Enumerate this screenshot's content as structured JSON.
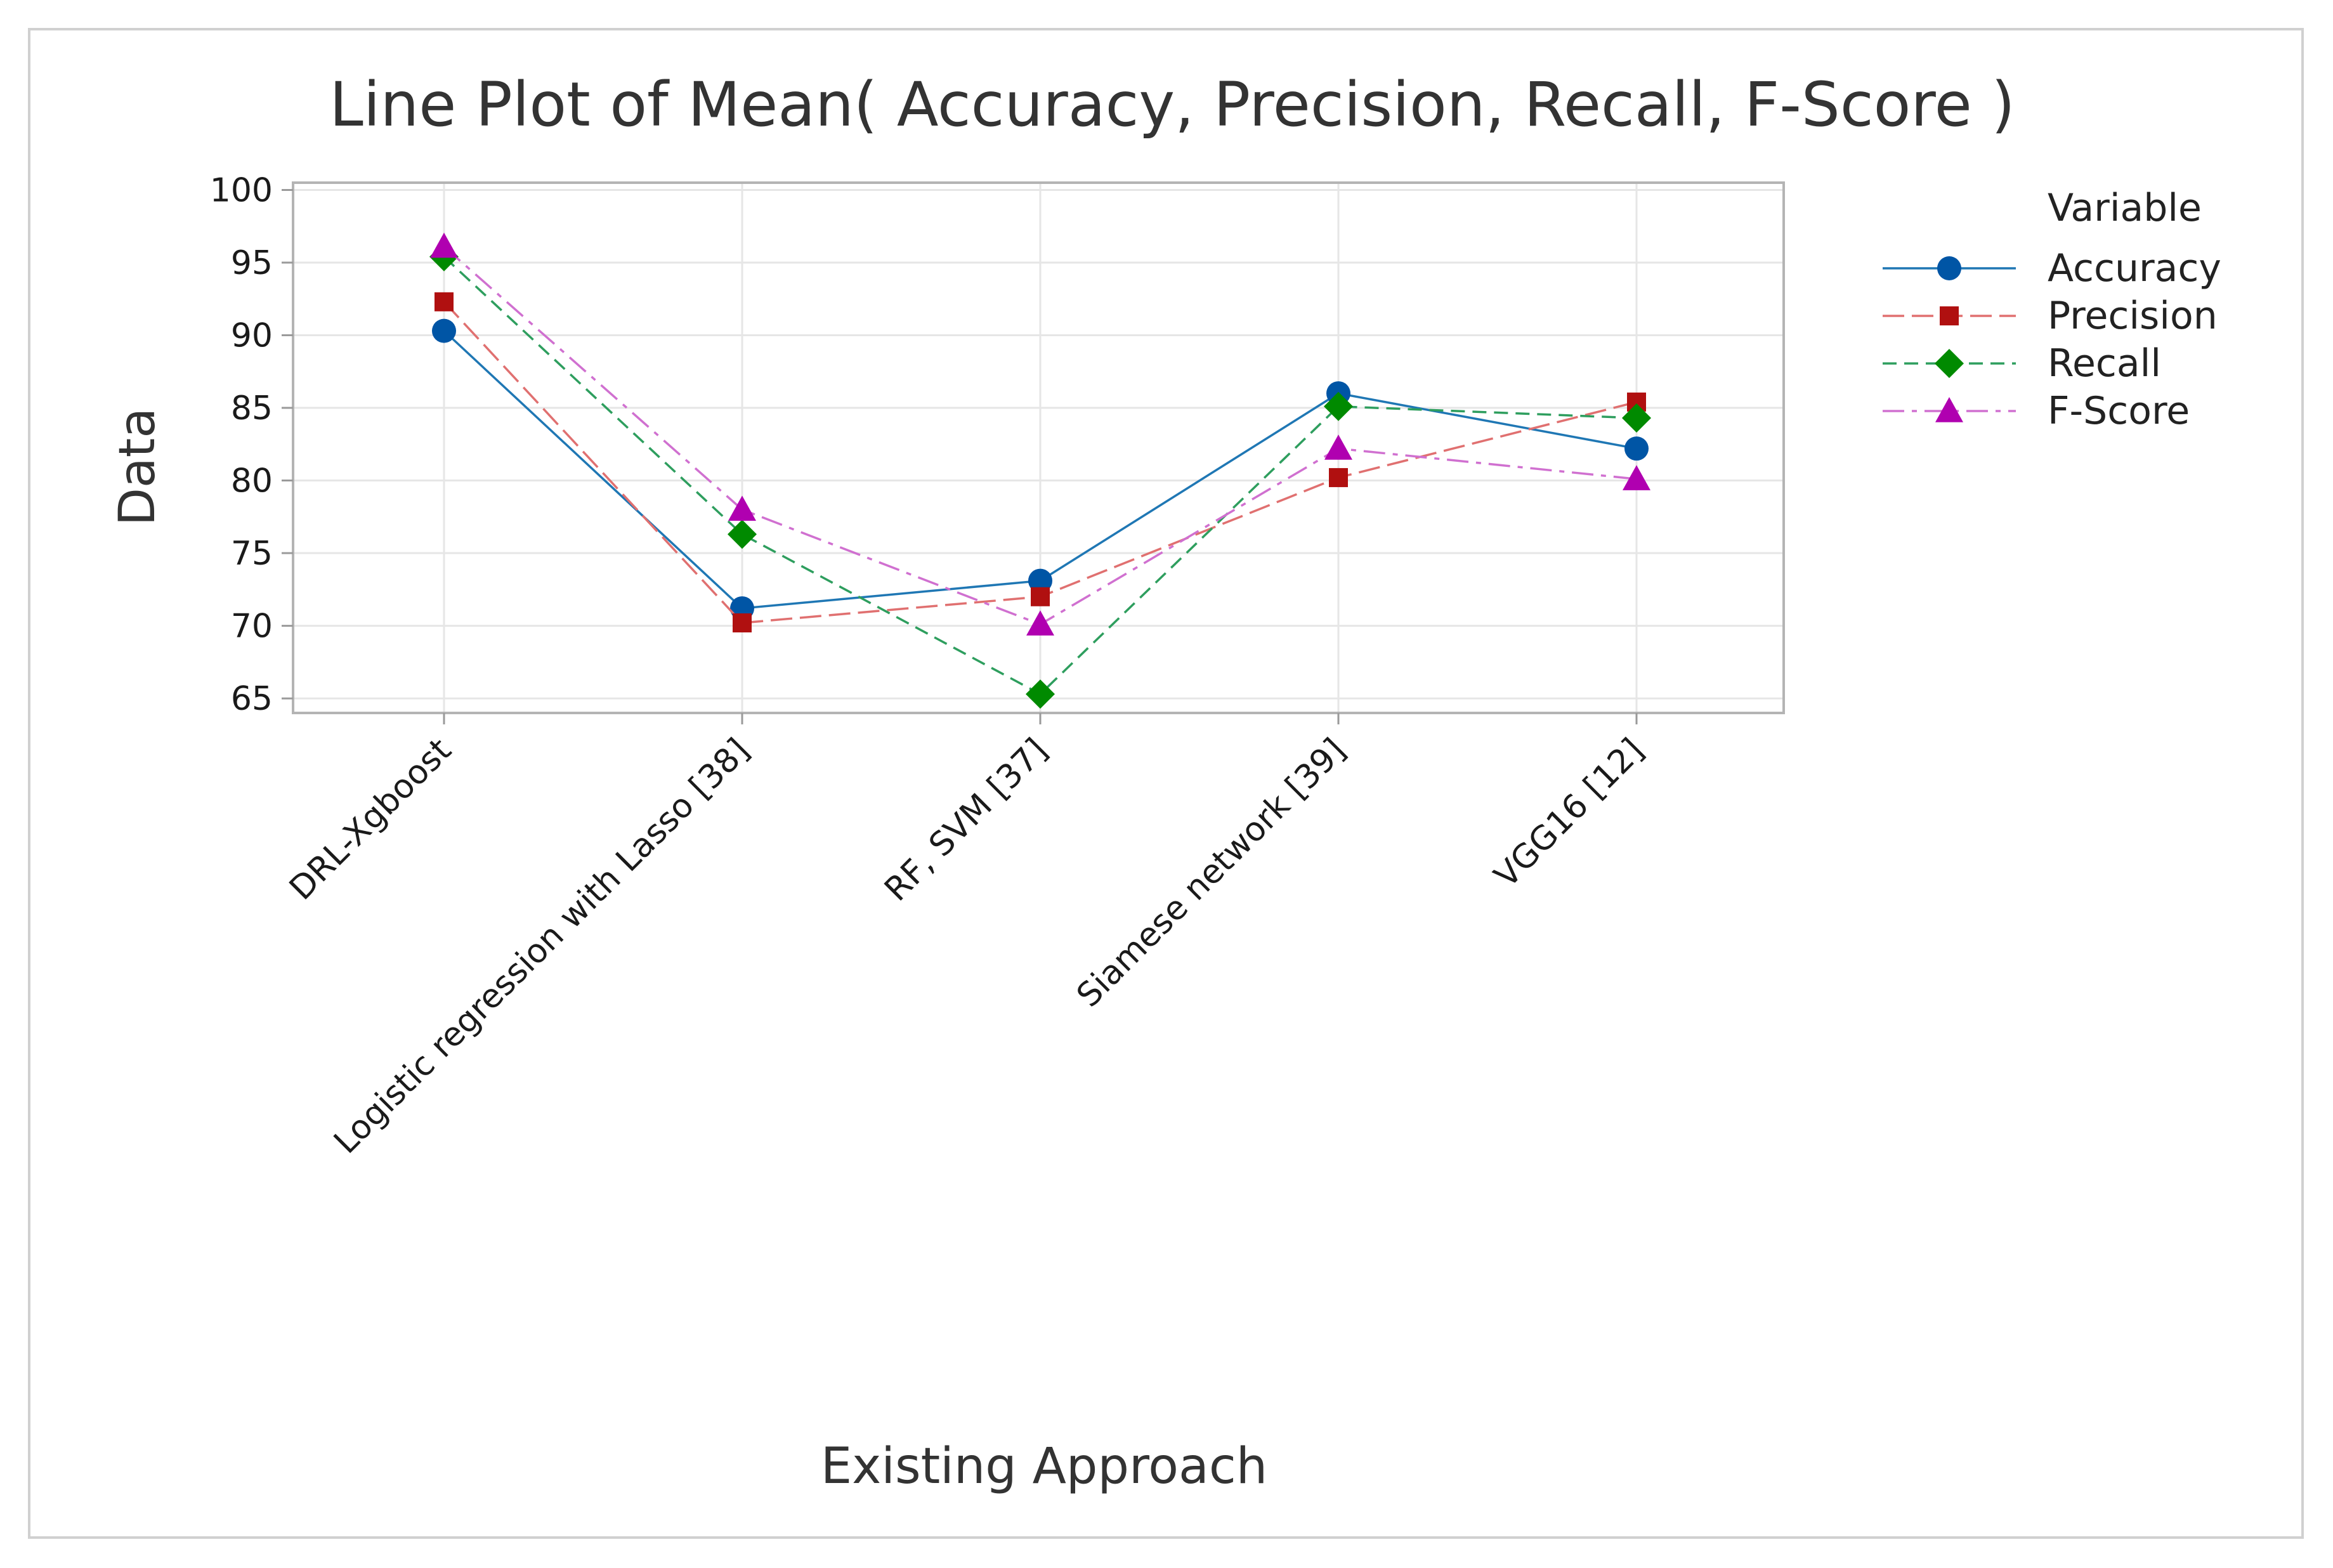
{
  "chart_data": {
    "type": "line",
    "title": "Line Plot of Mean( Accuracy, Precision, Recall, F-Score )",
    "xlabel": "Existing Approach",
    "ylabel": "Data",
    "categories": [
      "DRL-Xgboost",
      "Logistic regression with Lasso [38]",
      "RF, SVM [37]",
      "Siamese network [39]",
      "VGG16 [12]"
    ],
    "ylim": [
      64,
      100.5
    ],
    "yticks": [
      65,
      70,
      75,
      80,
      85,
      90,
      95,
      100
    ],
    "grid": true,
    "legend_title": "Variable",
    "legend_position": "right",
    "series": [
      {
        "name": "Accuracy",
        "values": [
          90.3,
          71.2,
          73.1,
          86.0,
          82.2
        ],
        "color": "#1f77b4",
        "marker_color": "#0055a5",
        "marker": "circle",
        "dash": "solid"
      },
      {
        "name": "Precision",
        "values": [
          92.3,
          70.2,
          72.0,
          80.2,
          85.4
        ],
        "color": "#e07070",
        "marker_color": "#b01010",
        "marker": "square",
        "dash": "long-dash"
      },
      {
        "name": "Recall",
        "values": [
          95.4,
          76.3,
          65.3,
          85.1,
          84.3
        ],
        "color": "#2e9e5e",
        "marker_color": "#008a00",
        "marker": "diamond",
        "dash": "dash"
      },
      {
        "name": "F-Score",
        "values": [
          96.1,
          78.0,
          70.1,
          82.2,
          80.1
        ],
        "color": "#d070d0",
        "marker_color": "#b000b0",
        "marker": "triangle",
        "dash": "dash-dot"
      }
    ]
  }
}
